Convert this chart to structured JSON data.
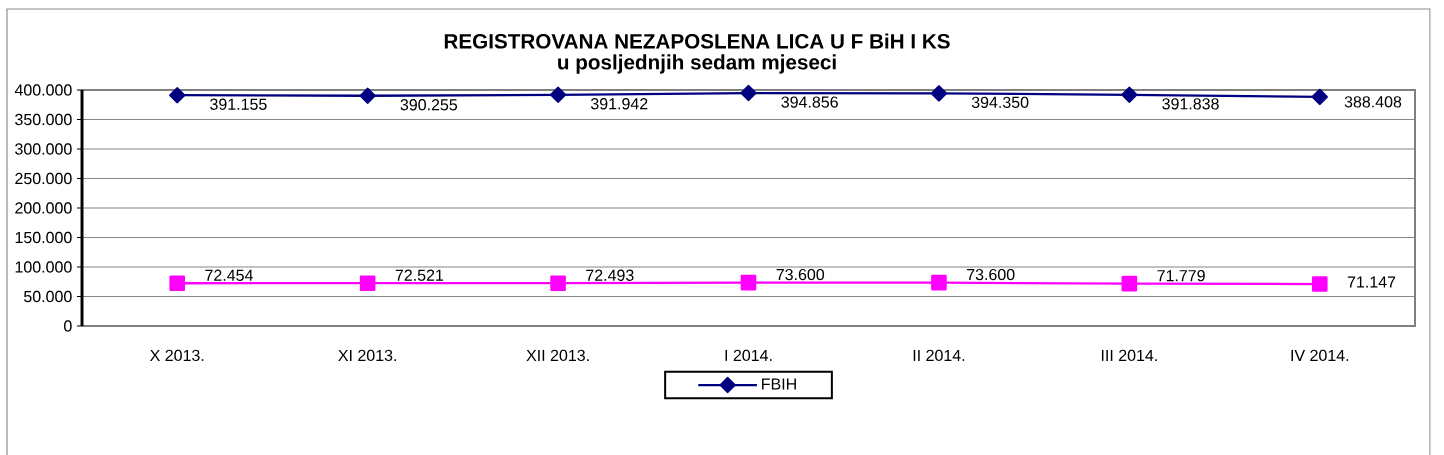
{
  "chart_data": {
    "type": "line",
    "title": "REGISTROVANA NEZAPOSLENA LICA U F BiH I KS",
    "subtitle": "u posljednjih sedam mjeseci",
    "categories": [
      "X 2013.",
      "XI 2013.",
      "XII 2013.",
      "I 2014.",
      "II 2014.",
      "III 2014.",
      "IV 2014."
    ],
    "series": [
      {
        "name": "FBIH",
        "color": "#000080",
        "marker": "diamond",
        "values": [
          391155,
          390255,
          391942,
          394856,
          394350,
          391838,
          388408
        ],
        "value_labels": [
          "391.155",
          "390.255",
          "391.942",
          "394.856",
          "394.350",
          "391.838",
          "388.408"
        ]
      },
      {
        "color": "#ff00ff",
        "marker": "square",
        "values": [
          72454,
          72521,
          72493,
          73600,
          73600,
          71779,
          71147
        ],
        "value_labels": [
          "72.454",
          "72.521",
          "72.493",
          "73.600",
          "73.600",
          "71.779",
          "71.147"
        ]
      }
    ],
    "ylim": [
      0,
      400000
    ],
    "yticks": [
      0,
      {
        "value": 50000,
        "label": "50.000"
      },
      {
        "value": 100000,
        "label": "100.000"
      },
      {
        "value": 150000,
        "label": "150.000"
      },
      {
        "value": 200000,
        "label": "200.000"
      },
      {
        "value": 250000,
        "label": "250.000"
      },
      {
        "value": 300000,
        "label": "300.000"
      },
      {
        "value": 350000,
        "label": "350.000"
      },
      {
        "value": 400000,
        "label": "400.000"
      }
    ],
    "grid": "y",
    "legend": "bottom"
  }
}
